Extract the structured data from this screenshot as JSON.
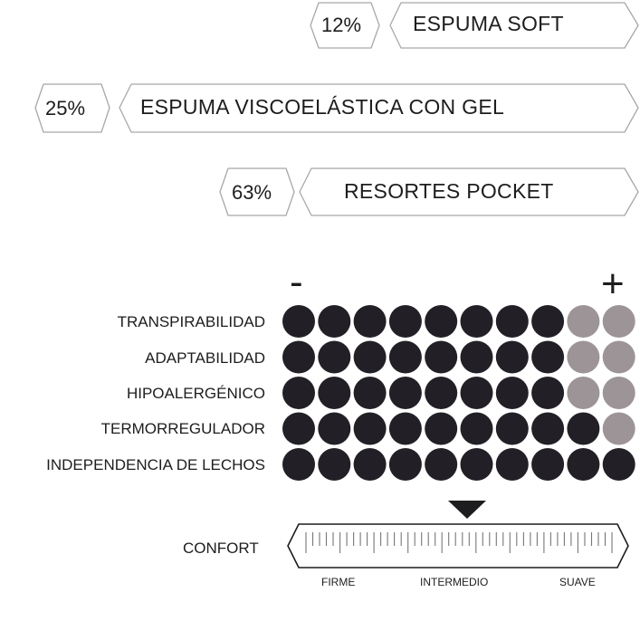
{
  "layers": [
    {
      "percent": "12%",
      "name": "ESPUMA SOFT"
    },
    {
      "percent": "25%",
      "name": "ESPUMA VISCOELÁSTICA CON GEL"
    },
    {
      "percent": "63%",
      "name": "RESORTES POCKET"
    }
  ],
  "scale": {
    "min_sign": "-",
    "max_sign": "+"
  },
  "attributes": [
    {
      "label": "TRANSPIRABILIDAD",
      "level": 8,
      "max": 10
    },
    {
      "label": "ADAPTABILIDAD",
      "level": 8,
      "max": 10
    },
    {
      "label": "HIPOALERGÉNICO",
      "level": 8,
      "max": 10
    },
    {
      "label": "TERMORREGULADOR",
      "level": 9,
      "max": 10
    },
    {
      "label": "INDEPENDENCIA DE LECHOS",
      "level": 10,
      "max": 10
    }
  ],
  "colors": {
    "filled": "#222026",
    "empty": "#9c9496",
    "outline": "#a8a8a8",
    "text": "#1d1d1f"
  },
  "comfort": {
    "label": "CONFORT",
    "marks": [
      "FIRME",
      "INTERMEDIO",
      "SUAVE"
    ],
    "indicator_value": 0.5
  }
}
